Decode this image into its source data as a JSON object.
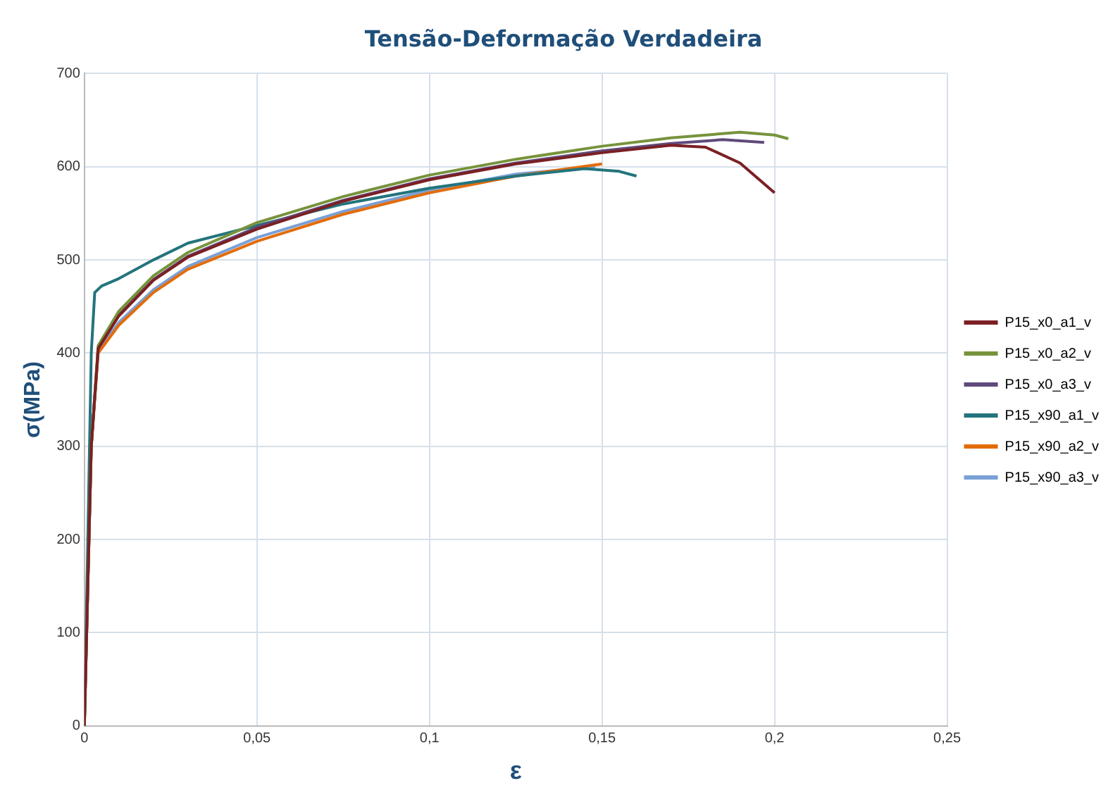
{
  "chart_data": {
    "type": "line",
    "title": "Tensão-Deformação Verdadeira",
    "xlabel": "ε",
    "ylabel": "σ(MPa)",
    "xlim": [
      0,
      0.25
    ],
    "xticks": [
      0,
      {
        "value": 0.05,
        "label": "0,05"
      },
      {
        "value": 0.1,
        "label": "0,1"
      },
      {
        "value": 0.15,
        "label": "0,15"
      },
      {
        "value": 0.2,
        "label": "0,2"
      },
      {
        "value": 0.25,
        "label": "0,25"
      }
    ],
    "ylim": [
      0,
      700
    ],
    "yticks": [
      0,
      100,
      200,
      300,
      400,
      500,
      600,
      700
    ],
    "grid": true,
    "legend": "right",
    "marker": "none",
    "line_style": "solid",
    "series": [
      {
        "name": "P15_x0_a1_v",
        "color": "#7b2024",
        "x": [
          0,
          0.002,
          0.004,
          0.01,
          0.02,
          0.03,
          0.05,
          0.075,
          0.1,
          0.125,
          0.15,
          0.17,
          0.18,
          0.19,
          0.2
        ],
        "values": [
          0,
          300,
          405,
          440,
          478,
          503,
          533,
          563,
          586,
          603,
          615,
          623,
          621,
          604,
          572
        ]
      },
      {
        "name": "P15_x0_a2_v",
        "color": "#77933c",
        "x": [
          0,
          0.002,
          0.004,
          0.01,
          0.02,
          0.03,
          0.05,
          0.075,
          0.1,
          0.125,
          0.15,
          0.17,
          0.19,
          0.2,
          0.204
        ],
        "values": [
          0,
          300,
          408,
          445,
          483,
          508,
          540,
          568,
          591,
          608,
          622,
          631,
          637,
          634,
          630
        ]
      },
      {
        "name": "P15_x0_a3_v",
        "color": "#5f4a7a",
        "x": [
          0,
          0.002,
          0.004,
          0.01,
          0.02,
          0.03,
          0.05,
          0.075,
          0.1,
          0.125,
          0.15,
          0.17,
          0.185,
          0.197
        ],
        "values": [
          0,
          300,
          405,
          441,
          479,
          504,
          535,
          564,
          587,
          604,
          617,
          625,
          629,
          626
        ]
      },
      {
        "name": "P15_x90_a1_v",
        "color": "#23747c",
        "x": [
          0,
          0.002,
          0.003,
          0.005,
          0.01,
          0.02,
          0.03,
          0.05,
          0.075,
          0.1,
          0.125,
          0.145,
          0.155,
          0.16
        ],
        "values": [
          0,
          400,
          465,
          472,
          480,
          500,
          518,
          537,
          560,
          577,
          590,
          598,
          595,
          590
        ]
      },
      {
        "name": "P15_x90_a2_v",
        "color": "#e36c0a",
        "x": [
          0,
          0.002,
          0.004,
          0.01,
          0.02,
          0.03,
          0.05,
          0.075,
          0.1,
          0.125,
          0.15
        ],
        "values": [
          0,
          300,
          400,
          430,
          465,
          490,
          520,
          549,
          572,
          590,
          603
        ]
      },
      {
        "name": "P15_x90_a3_v",
        "color": "#7aa0d6",
        "x": [
          0,
          0.002,
          0.004,
          0.01,
          0.02,
          0.03,
          0.05,
          0.075,
          0.1,
          0.125,
          0.148
        ],
        "values": [
          0,
          300,
          402,
          433,
          468,
          493,
          524,
          552,
          575,
          592,
          600
        ]
      }
    ]
  }
}
